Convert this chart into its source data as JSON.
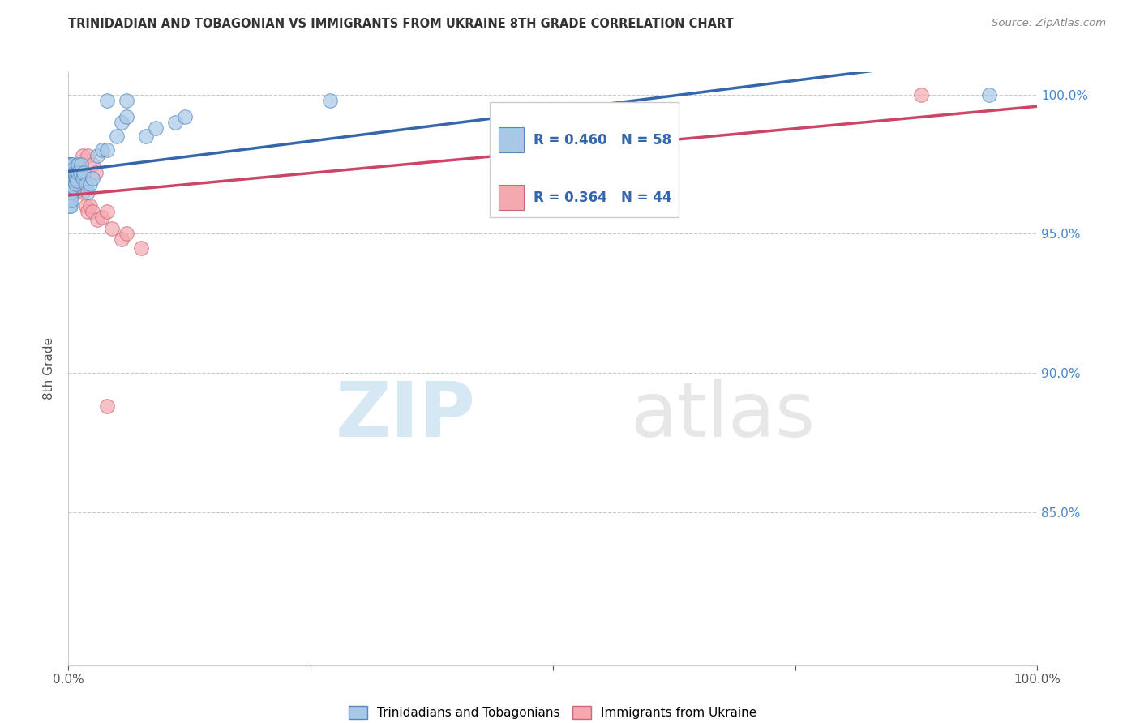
{
  "title": "TRINIDADIAN AND TOBAGONIAN VS IMMIGRANTS FROM UKRAINE 8TH GRADE CORRELATION CHART",
  "source": "Source: ZipAtlas.com",
  "ylabel": "8th Grade",
  "xlim": [
    0.0,
    1.0
  ],
  "ylim": [
    0.795,
    1.008
  ],
  "yticks": [
    0.85,
    0.9,
    0.95,
    1.0
  ],
  "ytick_labels": [
    "85.0%",
    "90.0%",
    "95.0%",
    "100.0%"
  ],
  "xticks": [
    0.0,
    0.25,
    0.5,
    0.75,
    1.0
  ],
  "xtick_labels": [
    "0.0%",
    "",
    "",
    "",
    "100.0%"
  ],
  "blue_color": "#a8c8e8",
  "pink_color": "#f4a8b0",
  "blue_edge_color": "#5588bb",
  "pink_edge_color": "#cc6677",
  "blue_line_color": "#3366aa",
  "pink_line_color": "#cc4466",
  "R_blue": 0.46,
  "N_blue": 58,
  "R_pink": 0.364,
  "N_pink": 44,
  "legend_label_blue": "Trinidadians and Tobagonians",
  "legend_label_pink": "Immigrants from Ukraine",
  "watermark_zip": "ZIP",
  "watermark_atlas": "atlas",
  "background_color": "#ffffff",
  "tick_color": "#4488cc",
  "blue_scatter_x": [
    0.001,
    0.001,
    0.001,
    0.001,
    0.001,
    0.001,
    0.001,
    0.001,
    0.002,
    0.002,
    0.002,
    0.002,
    0.002,
    0.002,
    0.002,
    0.003,
    0.003,
    0.003,
    0.003,
    0.003,
    0.003,
    0.004,
    0.004,
    0.004,
    0.004,
    0.005,
    0.005,
    0.005,
    0.006,
    0.006,
    0.007,
    0.007,
    0.008,
    0.009,
    0.01,
    0.01,
    0.012,
    0.013,
    0.015,
    0.016,
    0.018,
    0.02,
    0.022,
    0.025,
    0.03,
    0.035,
    0.04,
    0.05,
    0.055,
    0.06,
    0.08,
    0.09,
    0.11,
    0.12,
    0.04,
    0.06,
    0.27,
    0.95
  ],
  "blue_scatter_y": [
    0.975,
    0.972,
    0.97,
    0.968,
    0.966,
    0.964,
    0.962,
    0.96,
    0.975,
    0.972,
    0.97,
    0.968,
    0.966,
    0.963,
    0.96,
    0.975,
    0.972,
    0.97,
    0.968,
    0.965,
    0.962,
    0.975,
    0.972,
    0.97,
    0.967,
    0.973,
    0.97,
    0.967,
    0.972,
    0.969,
    0.971,
    0.968,
    0.97,
    0.969,
    0.975,
    0.972,
    0.972,
    0.975,
    0.97,
    0.972,
    0.968,
    0.965,
    0.968,
    0.97,
    0.978,
    0.98,
    0.98,
    0.985,
    0.99,
    0.992,
    0.985,
    0.988,
    0.99,
    0.992,
    0.998,
    0.998,
    0.998,
    1.0
  ],
  "pink_scatter_x": [
    0.001,
    0.001,
    0.001,
    0.001,
    0.001,
    0.002,
    0.002,
    0.002,
    0.002,
    0.003,
    0.003,
    0.003,
    0.004,
    0.004,
    0.004,
    0.005,
    0.005,
    0.006,
    0.006,
    0.007,
    0.007,
    0.008,
    0.009,
    0.01,
    0.012,
    0.013,
    0.015,
    0.018,
    0.02,
    0.022,
    0.025,
    0.03,
    0.035,
    0.04,
    0.045,
    0.055,
    0.06,
    0.075,
    0.015,
    0.02,
    0.025,
    0.028,
    0.04,
    0.88
  ],
  "pink_scatter_y": [
    0.975,
    0.973,
    0.971,
    0.969,
    0.967,
    0.974,
    0.972,
    0.97,
    0.968,
    0.973,
    0.971,
    0.969,
    0.972,
    0.97,
    0.968,
    0.97,
    0.968,
    0.969,
    0.967,
    0.968,
    0.966,
    0.966,
    0.965,
    0.967,
    0.966,
    0.968,
    0.965,
    0.96,
    0.958,
    0.96,
    0.958,
    0.955,
    0.956,
    0.958,
    0.952,
    0.948,
    0.95,
    0.945,
    0.978,
    0.978,
    0.975,
    0.972,
    0.888,
    1.0
  ]
}
